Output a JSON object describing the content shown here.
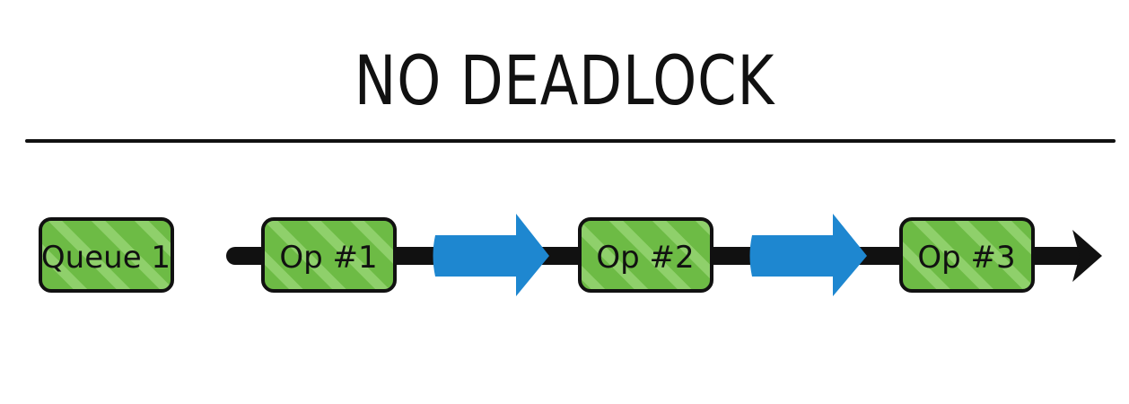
{
  "title": "NO DEADLOCK",
  "queue": {
    "label": "Queue 1"
  },
  "operations": [
    {
      "label": "Op #1"
    },
    {
      "label": "Op #2"
    },
    {
      "label": "Op #3"
    }
  ],
  "colors": {
    "box_fill": "#6dbb45",
    "box_stripe": "#8fd06b",
    "box_border": "#111111",
    "arrow_blue": "#1e87d0",
    "timeline": "#111111"
  }
}
